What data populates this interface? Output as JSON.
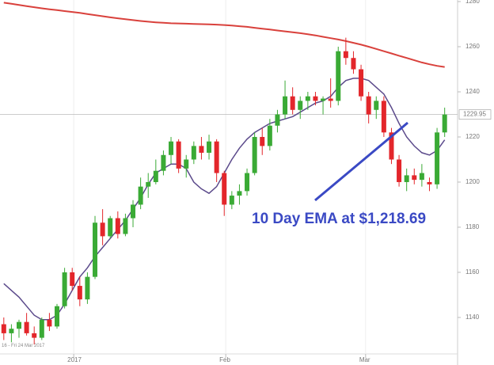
{
  "chart_data": {
    "type": "candlestick",
    "annotation": "10 Day EMA at $1,218.69",
    "x_range_label": "16 - Fri 24 Mar 2017",
    "last_price": 1229.95,
    "up_color": "#3aaa35",
    "down_color": "#e3262b",
    "xlim": [
      -0.5,
      59.7
    ],
    "ylim": [
      1126.3,
      1280.7
    ],
    "yticks": [
      1140,
      1160,
      1180,
      1200,
      1220,
      1240,
      1260,
      1280
    ],
    "xticks": [
      {
        "value": 9.2,
        "label": "2017"
      },
      {
        "value": 29.2,
        "label": "Feb"
      },
      {
        "value": 47.6,
        "label": "Mar"
      }
    ],
    "x": [
      0,
      1,
      2,
      3,
      4,
      5,
      6,
      7,
      8,
      9,
      10,
      11,
      12,
      13,
      14,
      15,
      16,
      17,
      18,
      19,
      20,
      21,
      22,
      23,
      24,
      25,
      26,
      27,
      28,
      29,
      30,
      31,
      32,
      33,
      34,
      35,
      36,
      37,
      38,
      39,
      40,
      41,
      42,
      43,
      44,
      45,
      46,
      47,
      48,
      49,
      50,
      51,
      52,
      53,
      54,
      55,
      56,
      57,
      58
    ],
    "open": [
      1137,
      1133,
      1135,
      1138,
      1133,
      1131,
      1139,
      1136,
      1145,
      1160,
      1154,
      1148,
      1158,
      1182,
      1176,
      1184,
      1177,
      1184,
      1190,
      1198,
      1200,
      1205,
      1212,
      1218,
      1206,
      1210,
      1216,
      1213,
      1218,
      1204,
      1190,
      1194,
      1196,
      1204,
      1220,
      1216,
      1225,
      1230,
      1238,
      1232,
      1236,
      1238,
      1236,
      1237,
      1236,
      1258,
      1255,
      1250,
      1238,
      1232,
      1236,
      1222,
      1210,
      1200,
      1203,
      1201,
      1200,
      1199,
      1222
    ],
    "high": [
      1140,
      1137,
      1139,
      1142,
      1136,
      1140,
      1142,
      1146,
      1162,
      1162,
      1158,
      1160,
      1185,
      1188,
      1185,
      1187,
      1186,
      1192,
      1202,
      1204,
      1210,
      1214,
      1220,
      1219,
      1212,
      1218,
      1220,
      1221,
      1219,
      1205,
      1196,
      1199,
      1206,
      1222,
      1224,
      1228,
      1232,
      1245,
      1242,
      1238,
      1240,
      1240,
      1238,
      1246,
      1260,
      1264,
      1258,
      1252,
      1240,
      1238,
      1238,
      1224,
      1212,
      1206,
      1206,
      1208,
      1202,
      1224,
      1233
    ],
    "low": [
      1130,
      1129,
      1131,
      1132,
      1128,
      1130,
      1134,
      1135,
      1144,
      1152,
      1145,
      1146,
      1157,
      1172,
      1175,
      1175,
      1176,
      1180,
      1188,
      1193,
      1199,
      1203,
      1208,
      1204,
      1202,
      1208,
      1210,
      1210,
      1200,
      1185,
      1188,
      1190,
      1194,
      1203,
      1212,
      1214,
      1222,
      1228,
      1230,
      1228,
      1232,
      1234,
      1230,
      1233,
      1234,
      1252,
      1248,
      1236,
      1226,
      1228,
      1220,
      1208,
      1198,
      1196,
      1199,
      1198,
      1196,
      1197,
      1220
    ],
    "close": [
      1133,
      1135,
      1138,
      1133,
      1131,
      1139,
      1136,
      1145,
      1160,
      1154,
      1148,
      1158,
      1182,
      1176,
      1184,
      1177,
      1184,
      1190,
      1198,
      1200,
      1205,
      1212,
      1218,
      1206,
      1210,
      1216,
      1213,
      1218,
      1204,
      1190,
      1194,
      1196,
      1204,
      1220,
      1216,
      1225,
      1230,
      1238,
      1232,
      1236,
      1238,
      1236,
      1237,
      1236,
      1258,
      1255,
      1250,
      1238,
      1230,
      1236,
      1222,
      1210,
      1200,
      1203,
      1201,
      1204,
      1199,
      1222,
      1229.95
    ],
    "lines": [
      {
        "color": "#d9413c",
        "values": [
          1279.5,
          1279,
          1278.5,
          1278,
          1277.5,
          1277,
          1276.6,
          1276.2,
          1275.8,
          1275.4,
          1275,
          1274.5,
          1274,
          1273.5,
          1273,
          1272.6,
          1272.2,
          1271.8,
          1271.4,
          1271.1,
          1270.8,
          1270.6,
          1270.4,
          1270.3,
          1270.2,
          1270.1,
          1270,
          1269.9,
          1269.8,
          1269.6,
          1269.4,
          1269.1,
          1268.8,
          1268.4,
          1268,
          1267.6,
          1267.2,
          1266.8,
          1266.4,
          1266,
          1265.5,
          1265,
          1264.4,
          1263.8,
          1263.2,
          1262.5,
          1261.7,
          1260.9,
          1260,
          1259,
          1258,
          1257,
          1256,
          1255,
          1254,
          1253,
          1252.2,
          1251.5,
          1251
        ]
      },
      {
        "color": "#5b4a8b",
        "values": [
          1155,
          1152,
          1149,
          1145,
          1141,
          1139,
          1139,
          1141,
          1146,
          1152,
          1158,
          1162,
          1167,
          1171,
          1175,
          1179,
          1183,
          1188,
          1193,
          1199,
          1204,
          1206,
          1208,
          1208,
          1206,
          1200,
          1197,
          1195,
          1198,
          1204,
          1210,
          1215,
          1219,
          1222,
          1224,
          1226,
          1227,
          1228,
          1229,
          1231,
          1233,
          1235,
          1236,
          1238,
          1242,
          1245,
          1246,
          1246,
          1245,
          1242,
          1239,
          1233,
          1226,
          1220,
          1216,
          1213,
          1212,
          1214,
          1218.69
        ]
      }
    ]
  }
}
